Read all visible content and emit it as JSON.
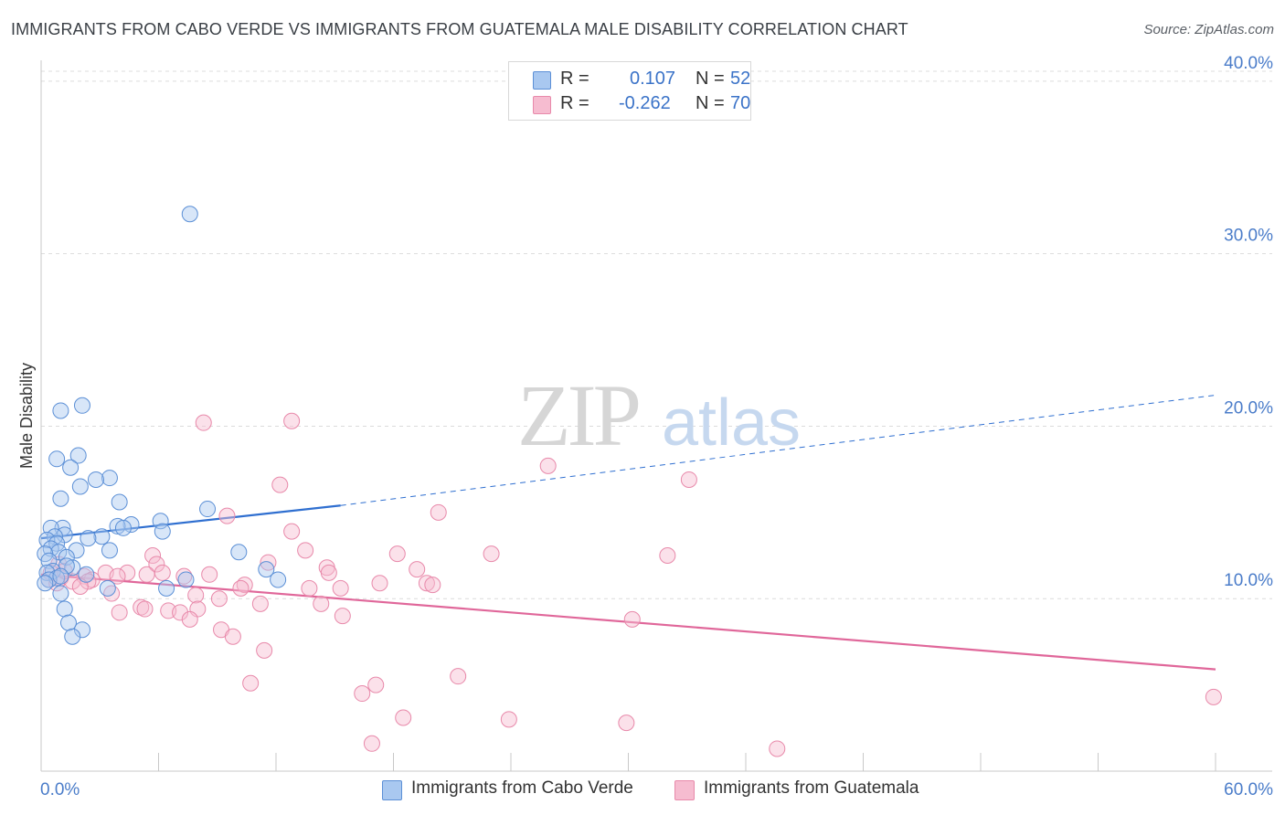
{
  "title": "IMMIGRANTS FROM CABO VERDE VS IMMIGRANTS FROM GUATEMALA MALE DISABILITY CORRELATION CHART",
  "source": "Source: ZipAtlas.com",
  "watermark": {
    "zip": "ZIP",
    "atlas": "atlas"
  },
  "stats": {
    "r_label": "R =",
    "n_label": "N =",
    "blue": {
      "r": "0.107",
      "n": "52"
    },
    "pink": {
      "r": "-0.262",
      "n": "70"
    }
  },
  "legend": {
    "blue": "Immigrants from Cabo Verde",
    "pink": "Immigrants from Guatemala"
  },
  "colors": {
    "blue_fill": "#a9c8f0",
    "blue_stroke": "#5b8fd6",
    "blue_line": "#2f6fd0",
    "pink_fill": "#f6bcd0",
    "pink_stroke": "#e889aa",
    "pink_line": "#e0679a",
    "grid": "#dcdcdc",
    "axis_text": "#4a7cc9"
  },
  "chart_data": {
    "type": "scatter",
    "title": "IMMIGRANTS FROM CABO VERDE VS IMMIGRANTS FROM GUATEMALA MALE DISABILITY CORRELATION CHART",
    "xlabel": "",
    "ylabel": "Male Disability",
    "xlim": [
      0,
      60
    ],
    "ylim": [
      0,
      41
    ],
    "x_tick_labels": [
      "0.0%",
      "60.0%"
    ],
    "y_ticks": [
      10,
      20,
      30,
      40
    ],
    "y_tick_labels": [
      "10.0%",
      "20.0%",
      "30.0%",
      "40.0%"
    ],
    "grid": true,
    "series": [
      {
        "name": "Immigrants from Cabo Verde",
        "color": "blue",
        "r": 0.107,
        "n": 52,
        "trend": {
          "x0": 0,
          "y0": 13.5,
          "x1": 15.3,
          "y1": 15.4,
          "dash_to_x": 60,
          "dash_to_y": 21.8
        },
        "points": [
          [
            7.6,
            32.3
          ],
          [
            2.1,
            21.2
          ],
          [
            1.0,
            20.9
          ],
          [
            1.9,
            18.3
          ],
          [
            0.8,
            18.1
          ],
          [
            1.5,
            17.6
          ],
          [
            3.5,
            17.0
          ],
          [
            2.8,
            16.9
          ],
          [
            2.0,
            16.5
          ],
          [
            1.0,
            15.8
          ],
          [
            4.0,
            15.6
          ],
          [
            8.5,
            15.2
          ],
          [
            6.1,
            14.5
          ],
          [
            4.6,
            14.3
          ],
          [
            3.9,
            14.2
          ],
          [
            4.2,
            14.1
          ],
          [
            1.1,
            14.1
          ],
          [
            0.5,
            14.1
          ],
          [
            6.2,
            13.9
          ],
          [
            1.2,
            13.7
          ],
          [
            0.7,
            13.6
          ],
          [
            3.1,
            13.6
          ],
          [
            2.4,
            13.5
          ],
          [
            0.3,
            13.4
          ],
          [
            0.8,
            13.2
          ],
          [
            0.5,
            12.9
          ],
          [
            1.8,
            12.8
          ],
          [
            0.9,
            12.7
          ],
          [
            3.5,
            12.8
          ],
          [
            10.1,
            12.7
          ],
          [
            0.2,
            12.6
          ],
          [
            1.3,
            12.4
          ],
          [
            0.4,
            12.2
          ],
          [
            1.6,
            11.8
          ],
          [
            1.3,
            11.9
          ],
          [
            11.5,
            11.7
          ],
          [
            0.6,
            11.6
          ],
          [
            0.3,
            11.5
          ],
          [
            2.3,
            11.4
          ],
          [
            0.8,
            11.2
          ],
          [
            0.4,
            11.1
          ],
          [
            1.0,
            11.3
          ],
          [
            12.1,
            11.1
          ],
          [
            7.4,
            11.1
          ],
          [
            0.2,
            10.9
          ],
          [
            3.4,
            10.6
          ],
          [
            6.4,
            10.6
          ],
          [
            1.0,
            10.3
          ],
          [
            1.2,
            9.4
          ],
          [
            1.4,
            8.6
          ],
          [
            2.1,
            8.2
          ],
          [
            1.6,
            7.8
          ]
        ]
      },
      {
        "name": "Immigrants from Guatemala",
        "color": "pink",
        "r": -0.262,
        "n": 70,
        "trend": {
          "x0": 0,
          "y0": 11.4,
          "x1": 60,
          "y1": 5.9
        },
        "points": [
          [
            12.8,
            20.3
          ],
          [
            8.3,
            20.2
          ],
          [
            25.9,
            17.7
          ],
          [
            33.1,
            16.9
          ],
          [
            12.2,
            16.6
          ],
          [
            20.3,
            15.0
          ],
          [
            9.5,
            14.8
          ],
          [
            12.8,
            13.9
          ],
          [
            13.5,
            12.8
          ],
          [
            18.2,
            12.6
          ],
          [
            23.0,
            12.6
          ],
          [
            32.0,
            12.5
          ],
          [
            5.7,
            12.5
          ],
          [
            11.6,
            12.1
          ],
          [
            5.9,
            12.0
          ],
          [
            0.9,
            12.0
          ],
          [
            14.6,
            11.8
          ],
          [
            19.2,
            11.7
          ],
          [
            14.7,
            11.5
          ],
          [
            6.2,
            11.5
          ],
          [
            3.3,
            11.5
          ],
          [
            4.4,
            11.5
          ],
          [
            8.6,
            11.4
          ],
          [
            5.4,
            11.4
          ],
          [
            2.2,
            11.3
          ],
          [
            3.9,
            11.3
          ],
          [
            7.3,
            11.3
          ],
          [
            1.0,
            11.2
          ],
          [
            2.6,
            11.1
          ],
          [
            0.4,
            11.1
          ],
          [
            2.4,
            11.0
          ],
          [
            1.6,
            11.0
          ],
          [
            0.8,
            10.9
          ],
          [
            17.3,
            10.9
          ],
          [
            19.7,
            10.9
          ],
          [
            20.0,
            10.8
          ],
          [
            10.4,
            10.8
          ],
          [
            2.0,
            10.7
          ],
          [
            10.2,
            10.6
          ],
          [
            13.7,
            10.6
          ],
          [
            15.3,
            10.6
          ],
          [
            3.6,
            10.3
          ],
          [
            7.9,
            10.2
          ],
          [
            9.1,
            10.0
          ],
          [
            14.3,
            9.7
          ],
          [
            11.2,
            9.7
          ],
          [
            5.1,
            9.5
          ],
          [
            5.3,
            9.4
          ],
          [
            8.0,
            9.4
          ],
          [
            6.5,
            9.3
          ],
          [
            4.0,
            9.2
          ],
          [
            7.1,
            9.2
          ],
          [
            15.4,
            9.0
          ],
          [
            7.6,
            8.8
          ],
          [
            30.2,
            8.8
          ],
          [
            9.2,
            8.2
          ],
          [
            9.8,
            7.8
          ],
          [
            11.4,
            7.0
          ],
          [
            21.3,
            5.5
          ],
          [
            10.7,
            5.1
          ],
          [
            17.1,
            5.0
          ],
          [
            16.4,
            4.5
          ],
          [
            59.9,
            4.3
          ],
          [
            18.5,
            3.1
          ],
          [
            23.9,
            3.0
          ],
          [
            29.9,
            2.8
          ],
          [
            16.9,
            1.6
          ],
          [
            37.6,
            1.3
          ],
          [
            0.5,
            11.5
          ],
          [
            1.2,
            11.6
          ]
        ]
      }
    ]
  }
}
